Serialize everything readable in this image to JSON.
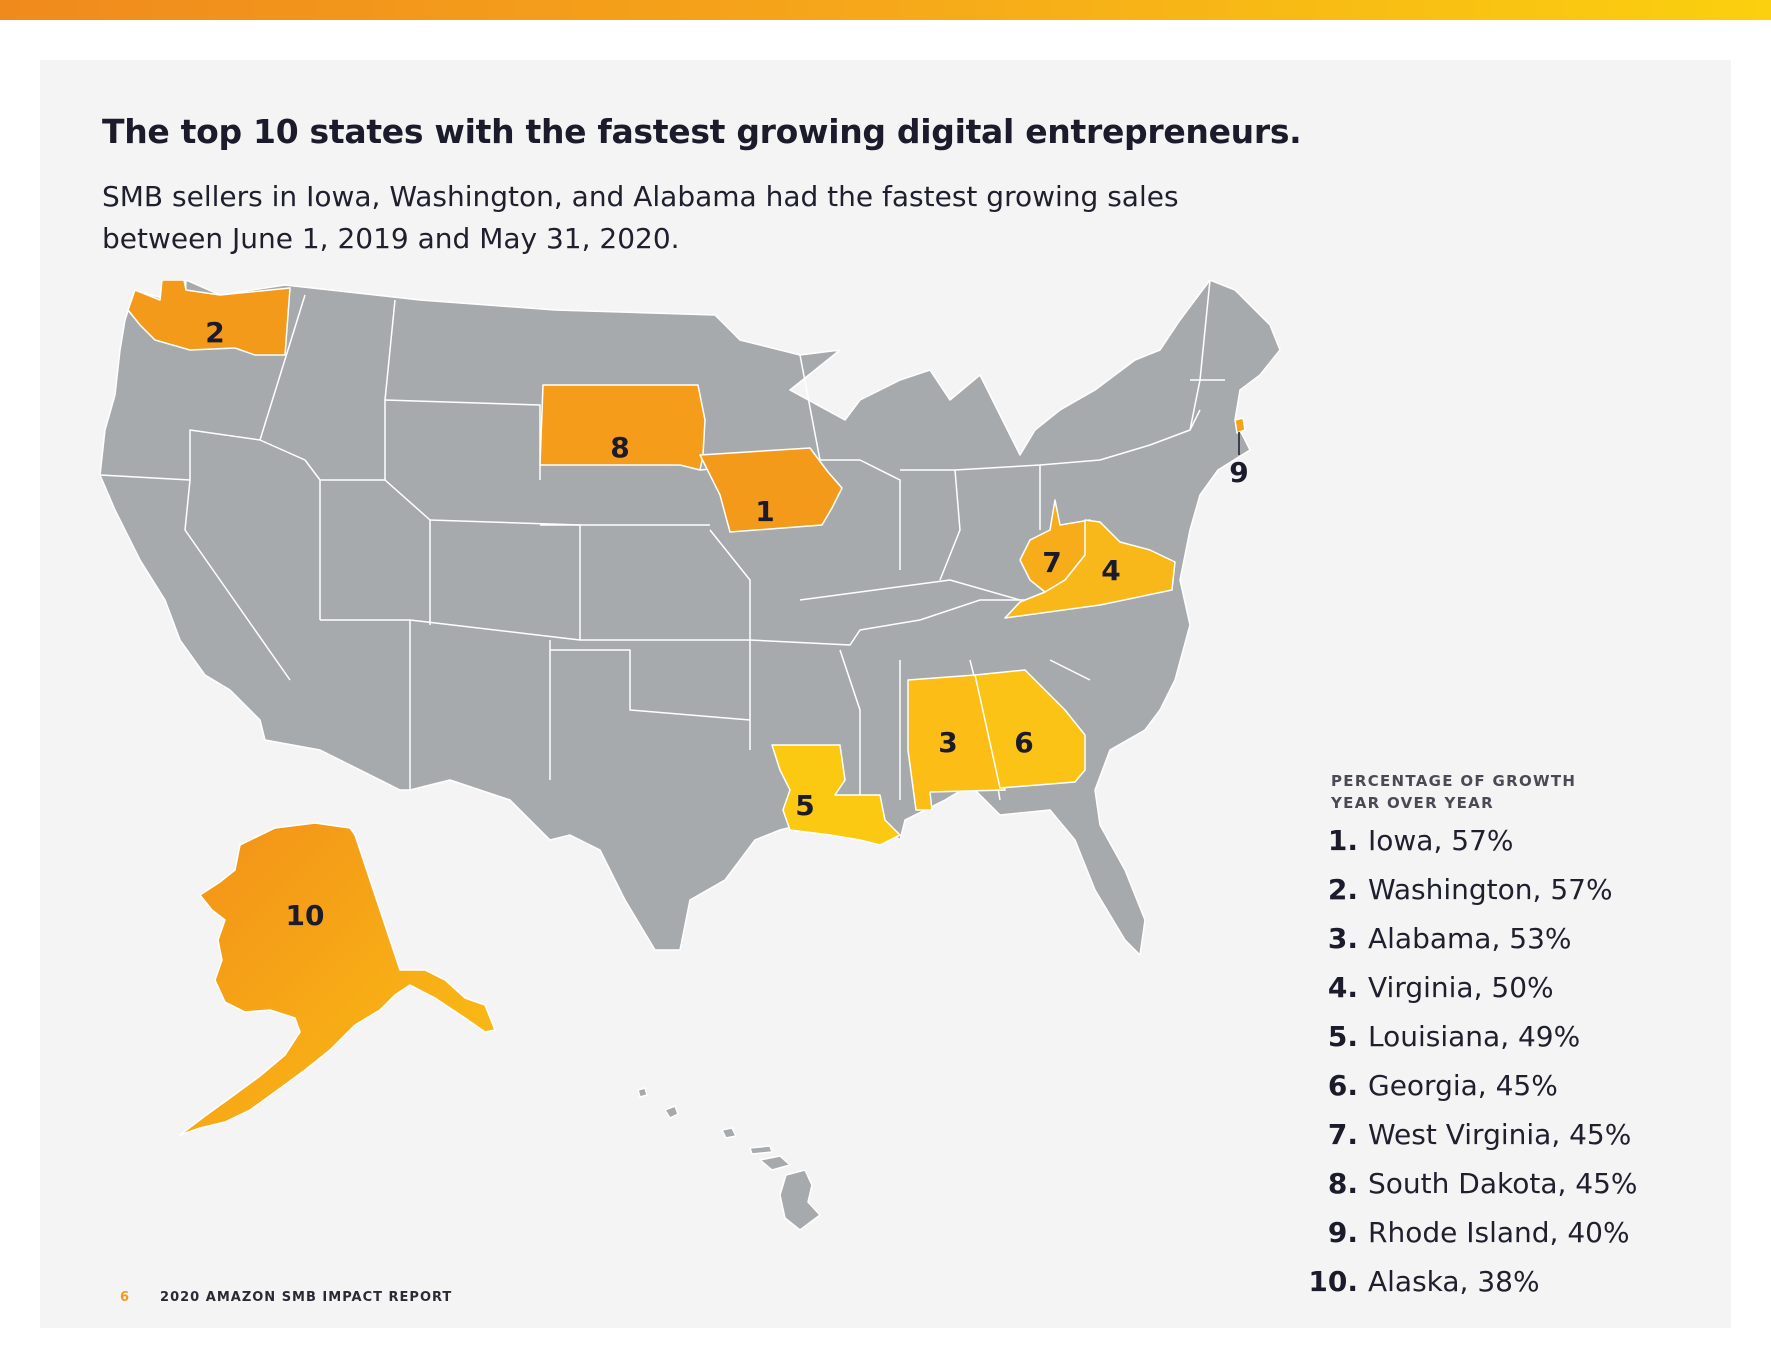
{
  "header": {
    "title": "The top 10 states with the fastest growing digital entrepreneurs.",
    "subtitle_line1": "SMB sellers in Iowa, Washington, and Alabama had the fastest growing sales",
    "subtitle_line2": "between June 1, 2019 and May 31, 2020."
  },
  "legend": {
    "heading_line1": "PERCENTAGE OF GROWTH",
    "heading_line2": "YEAR OVER YEAR",
    "items": [
      {
        "rank": "1.",
        "label": "Iowa, 57%"
      },
      {
        "rank": "2.",
        "label": "Washington, 57%"
      },
      {
        "rank": "3.",
        "label": "Alabama, 53%"
      },
      {
        "rank": "4.",
        "label": "Virginia, 50%"
      },
      {
        "rank": "5.",
        "label": "Louisiana, 49%"
      },
      {
        "rank": "6.",
        "label": "Georgia, 45%"
      },
      {
        "rank": "7.",
        "label": "West Virginia, 45%"
      },
      {
        "rank": "8.",
        "label": "South Dakota, 45%"
      },
      {
        "rank": "9.",
        "label": "Rhode Island, 40%"
      },
      {
        "rank": "10.",
        "label": "Alaska, 38%"
      }
    ]
  },
  "map": {
    "labels": {
      "iowa": "1",
      "washington": "2",
      "alabama": "3",
      "virginia": "4",
      "louisiana": "5",
      "georgia": "6",
      "west_virginia": "7",
      "south_dakota": "8",
      "rhode_island": "9",
      "alaska": "10"
    },
    "colors": {
      "base": "#a7aaad",
      "border": "#ffffff",
      "orange": "#f49a1a",
      "amber": "#f8b318",
      "yellow": "#fbc513"
    }
  },
  "footer": {
    "page_number": "6",
    "report_title": "2020 AMAZON SMB IMPACT REPORT"
  }
}
